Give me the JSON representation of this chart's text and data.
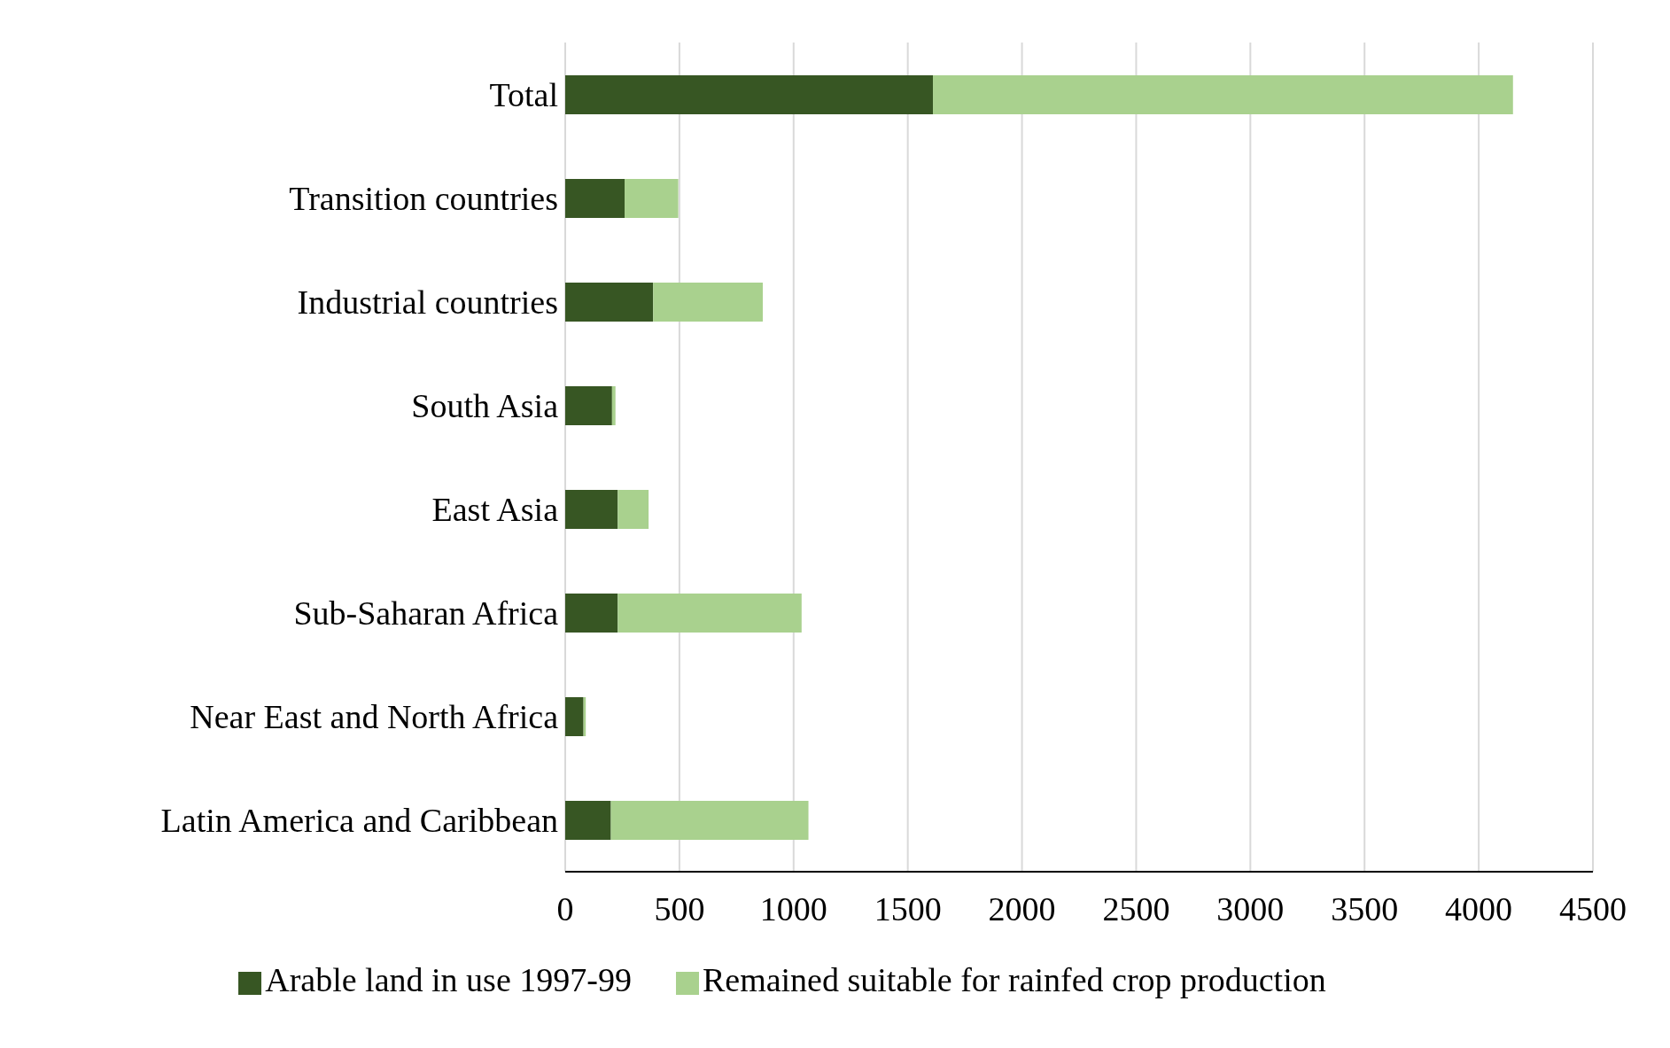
{
  "chart_data": {
    "type": "bar",
    "orientation": "horizontal",
    "stacked": true,
    "categories": [
      "Total",
      "Transition countries",
      "Industrial countries",
      "South Asia",
      "East Asia",
      "Sub-Saharan Africa",
      "Near East and North Africa",
      "Latin America and Caribbean"
    ],
    "series": [
      {
        "name": "Arable land in use 1997-99",
        "color": "#375623",
        "values": [
          1610,
          260,
          385,
          205,
          230,
          230,
          80,
          200
        ]
      },
      {
        "name": "Remained suitable for rainfed crop production",
        "color": "#a9d18e",
        "values": [
          2540,
          235,
          480,
          15,
          135,
          805,
          10,
          865
        ]
      }
    ],
    "xlim": [
      0,
      4500
    ],
    "xticks": [
      0,
      500,
      1000,
      1500,
      2000,
      2500,
      3000,
      3500,
      4000,
      4500
    ],
    "grid": "x",
    "legend": "bottom"
  }
}
